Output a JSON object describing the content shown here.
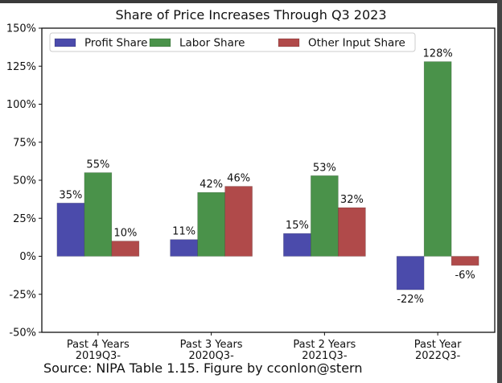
{
  "chart_data": {
    "type": "bar",
    "title": "Share of Price Increases Through Q3 2023",
    "xlabel": "",
    "ylabel": "",
    "ylim": [
      -50,
      150
    ],
    "yticks": [
      -50,
      -25,
      0,
      25,
      50,
      75,
      100,
      125,
      150
    ],
    "ytick_labels": [
      "-50%",
      "-25%",
      "0%",
      "25%",
      "50%",
      "75%",
      "100%",
      "125%",
      "150%"
    ],
    "categories": [
      [
        "Past 4 Years",
        "2019Q3-"
      ],
      [
        "Past 3 Years",
        "2020Q3-"
      ],
      [
        "Past 2 Years",
        "2021Q3-"
      ],
      [
        "Past Year",
        "2022Q3-"
      ]
    ],
    "series": [
      {
        "name": "Profit Share",
        "color": "#4b4bab",
        "values": [
          35,
          11,
          15,
          -22
        ],
        "labels": [
          "35%",
          "11%",
          "15%",
          "-22%"
        ]
      },
      {
        "name": "Labor Share",
        "color": "#4a924a",
        "values": [
          55,
          42,
          53,
          128
        ],
        "labels": [
          "55%",
          "42%",
          "53%",
          "128%"
        ]
      },
      {
        "name": "Other Input Share",
        "color": "#b04a4a",
        "values": [
          10,
          46,
          32,
          -6
        ],
        "labels": [
          "10%",
          "46%",
          "32%",
          "-6%"
        ]
      }
    ],
    "legend": {
      "position": "top-left",
      "ncol": 3
    },
    "grid": false
  },
  "source": "Source: NIPA Table 1.15. Figure by cconlon@stern"
}
